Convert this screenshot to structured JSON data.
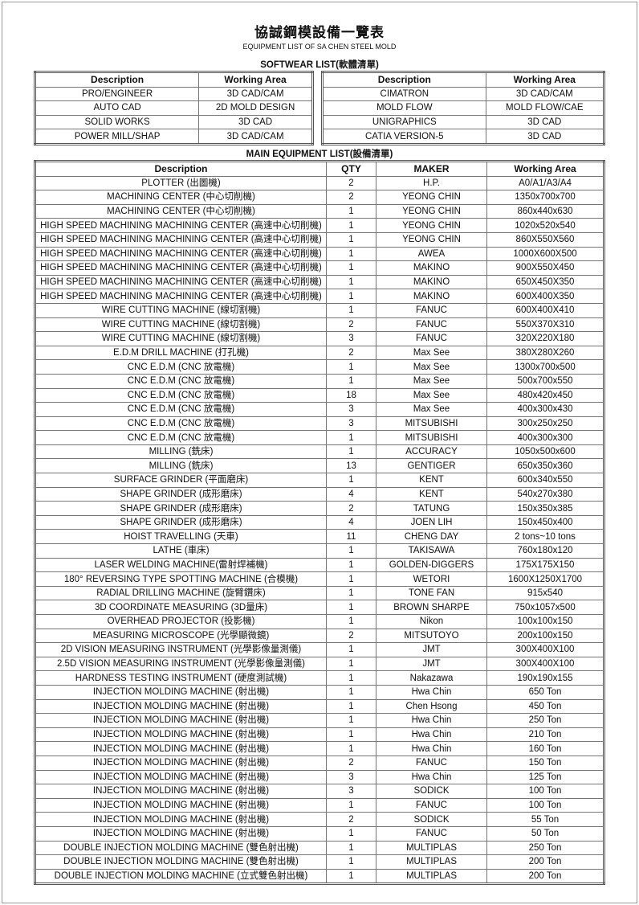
{
  "title": "協誠鋼模設備一覽表",
  "subtitle": "EQUIPMENT LIST OF SA CHEN STEEL MOLD",
  "software": {
    "heading": "SOFTWEAR LIST(軟體清單)",
    "columns": [
      "Description",
      "Working Area"
    ],
    "left": [
      [
        "PRO/ENGINEER",
        "3D CAD/CAM"
      ],
      [
        "AUTO CAD",
        "2D MOLD DESIGN"
      ],
      [
        "SOLID WORKS",
        "3D CAD"
      ],
      [
        "POWER MILL/SHAP",
        "3D CAD/CAM"
      ]
    ],
    "right": [
      [
        "CIMATRON",
        "3D CAD/CAM"
      ],
      [
        "MOLD FLOW",
        "MOLD FLOW/CAE"
      ],
      [
        "UNIGRAPHICS",
        "3D CAD"
      ],
      [
        "CATIA VERSION-5",
        "3D CAD"
      ]
    ]
  },
  "equipment": {
    "heading": "MAIN EQUIPMENT LIST(設備清單)",
    "columns": [
      "Description",
      "QTY",
      "MAKER",
      "Working Area"
    ],
    "rows": [
      [
        "PLOTTER (出圖機)",
        "2",
        "H.P.",
        "A0/A1/A3/A4"
      ],
      [
        "MACHINING CENTER (中心切削機)",
        "2",
        "YEONG CHIN",
        "1350x700x700"
      ],
      [
        "MACHINING CENTER (中心切削機)",
        "1",
        "YEONG CHIN",
        "860x440x630"
      ],
      [
        "HIGH SPEED MACHINING MACHINING CENTER (高速中心切削機)",
        "1",
        "YEONG CHIN",
        "1020x520x540"
      ],
      [
        "HIGH SPEED MACHINING MACHINING CENTER (高速中心切削機)",
        "1",
        "YEONG CHIN",
        "860X550X560"
      ],
      [
        "HIGH SPEED MACHINING MACHINING CENTER (高速中心切削機)",
        "1",
        "AWEA",
        "1000X600X500"
      ],
      [
        "HIGH SPEED MACHINING MACHINING CENTER (高速中心切削機)",
        "1",
        "MAKINO",
        "900X550X450"
      ],
      [
        "HIGH SPEED MACHINING MACHINING CENTER (高速中心切削機)",
        "1",
        "MAKINO",
        "650X450X350"
      ],
      [
        "HIGH SPEED MACHINING MACHINING CENTER (高速中心切削機)",
        "1",
        "MAKINO",
        "600X400X350"
      ],
      [
        "WIRE CUTTING MACHINE (線切割機)",
        "1",
        "FANUC",
        "600X400X410"
      ],
      [
        "WIRE CUTTING MACHINE (線切割機)",
        "2",
        "FANUC",
        "550X370X310"
      ],
      [
        "WIRE CUTTING MACHINE (線切割機)",
        "3",
        "FANUC",
        "320X220X180"
      ],
      [
        "E.D.M DRILL MACHINE (打孔機)",
        "2",
        "Max See",
        "380X280X260"
      ],
      [
        "CNC E.D.M (CNC 放電機)",
        "1",
        "Max See",
        "1300x700x500"
      ],
      [
        "CNC E.D.M (CNC 放電機)",
        "1",
        "Max See",
        "500x700x550"
      ],
      [
        "CNC E.D.M (CNC 放電機)",
        "18",
        "Max See",
        "480x420x450"
      ],
      [
        "CNC E.D.M (CNC 放電機)",
        "3",
        "Max See",
        "400x300x430"
      ],
      [
        "CNC E.D.M (CNC 放電機)",
        "3",
        "MITSUBISHI",
        "300x250x250"
      ],
      [
        "CNC E.D.M (CNC 放電機)",
        "1",
        "MITSUBISHI",
        "400x300x300"
      ],
      [
        "MILLING (銑床)",
        "1",
        "ACCURACY",
        "1050x500x600"
      ],
      [
        "MILLING (銑床)",
        "13",
        "GENTIGER",
        "650x350x360"
      ],
      [
        "SURFACE GRINDER (平面磨床)",
        "1",
        "KENT",
        "600x340x550"
      ],
      [
        "SHAPE GRINDER (成形磨床)",
        "4",
        "KENT",
        "540x270x380"
      ],
      [
        "SHAPE GRINDER (成形磨床)",
        "2",
        "TATUNG",
        "150x350x385"
      ],
      [
        "SHAPE GRINDER (成形磨床)",
        "4",
        "JOEN LIH",
        "150x450x400"
      ],
      [
        "HOIST TRAVELLING (天車)",
        "11",
        "CHENG DAY",
        "2 tons~10 tons"
      ],
      [
        "LATHE (車床)",
        "1",
        "TAKISAWA",
        "760x180x120"
      ],
      [
        "LASER WELDING MACHINE(雷射焊補機)",
        "1",
        "GOLDEN-DIGGERS",
        "175X175X150"
      ],
      [
        "180° REVERSING TYPE SPOTTING MACHINE (合模機)",
        "1",
        "WETORI",
        "1600X1250X1700"
      ],
      [
        "RADIAL DRILLING MACHINE (旋臂鑽床)",
        "1",
        "TONE FAN",
        "915x540"
      ],
      [
        "3D COORDINATE MEASURING (3D量床)",
        "1",
        "BROWN SHARPE",
        "750x1057x500"
      ],
      [
        "OVERHEAD PROJECTOR (投影機)",
        "1",
        "Nikon",
        "100x100x150"
      ],
      [
        "MEASURING MICROSCOPE (光學顯微鏡)",
        "2",
        "MITSUTOYO",
        "200x100x150"
      ],
      [
        "2D VISION MEASURING INSTRUMENT (光學影像量測儀)",
        "1",
        "JMT",
        "300X400X100"
      ],
      [
        "2.5D VISION MEASURING INSTRUMENT (光學影像量測儀)",
        "1",
        "JMT",
        "300X400X100"
      ],
      [
        "HARDNESS TESTING INSTRUMENT (硬度測試機)",
        "1",
        "Nakazawa",
        "190x190x155"
      ],
      [
        "INJECTION MOLDING MACHINE (射出機)",
        "1",
        "Hwa Chin",
        "650 Ton"
      ],
      [
        "INJECTION MOLDING MACHINE (射出機)",
        "1",
        "Chen Hsong",
        "450 Ton"
      ],
      [
        "INJECTION MOLDING MACHINE (射出機)",
        "1",
        "Hwa Chin",
        "250 Ton"
      ],
      [
        "INJECTION MOLDING MACHINE (射出機)",
        "1",
        "Hwa Chin",
        "210 Ton"
      ],
      [
        "INJECTION MOLDING MACHINE (射出機)",
        "1",
        "Hwa Chin",
        "160 Ton"
      ],
      [
        "INJECTION MOLDING MACHINE (射出機)",
        "2",
        "FANUC",
        "150 Ton"
      ],
      [
        "INJECTION MOLDING MACHINE (射出機)",
        "3",
        "Hwa Chin",
        "125 Ton"
      ],
      [
        "INJECTION MOLDING MACHINE (射出機)",
        "3",
        "SODICK",
        "100 Ton"
      ],
      [
        "INJECTION MOLDING MACHINE (射出機)",
        "1",
        "FANUC",
        "100 Ton"
      ],
      [
        "INJECTION MOLDING MACHINE (射出機)",
        "2",
        "SODICK",
        "55 Ton"
      ],
      [
        "INJECTION MOLDING MACHINE (射出機)",
        "1",
        "FANUC",
        "50 Ton"
      ],
      [
        "DOUBLE INJECTION MOLDING MACHINE (雙色射出機)",
        "1",
        "MULTIPLAS",
        "250 Ton"
      ],
      [
        "DOUBLE INJECTION MOLDING MACHINE (雙色射出機)",
        "1",
        "MULTIPLAS",
        "200 Ton"
      ],
      [
        "DOUBLE INJECTION MOLDING MACHINE (立式雙色射出機)",
        "1",
        "MULTIPLAS",
        "200 Ton"
      ]
    ]
  }
}
